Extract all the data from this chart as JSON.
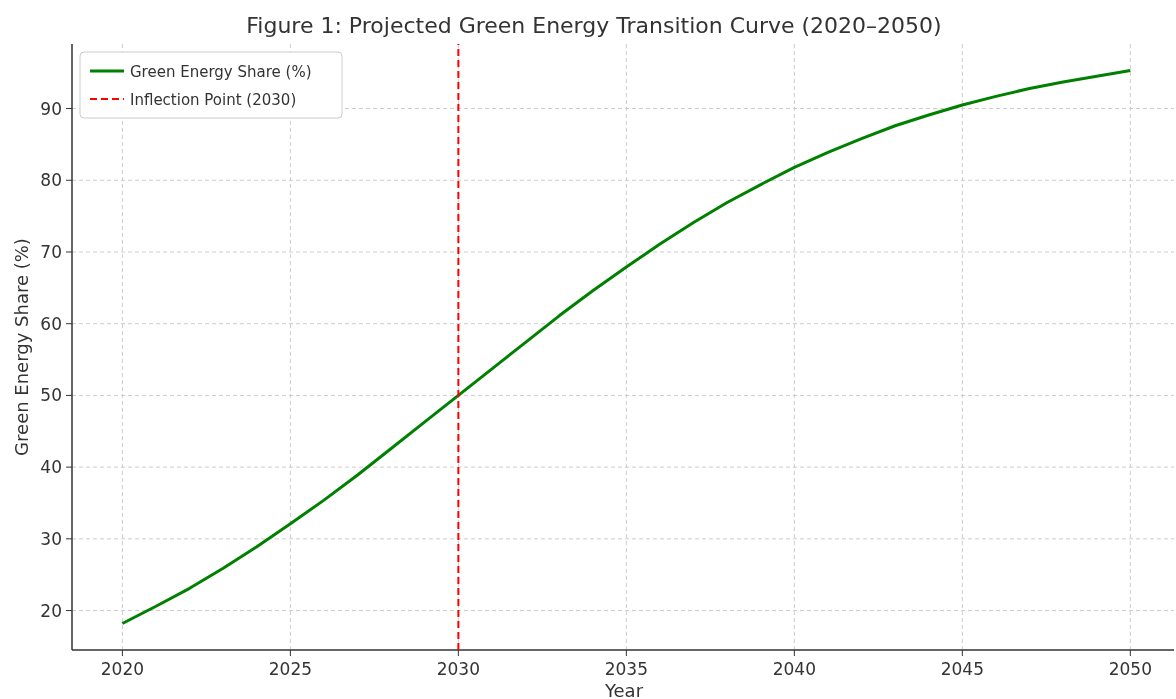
{
  "chart_data": {
    "type": "line",
    "title": "Figure 1: Projected Green Energy Transition Curve (2020–2050)",
    "xlabel": "Year",
    "ylabel": "Green Energy Share (%)",
    "x": [
      2020,
      2021,
      2022,
      2023,
      2024,
      2025,
      2026,
      2027,
      2028,
      2029,
      2030,
      2031,
      2032,
      2033,
      2034,
      2035,
      2036,
      2037,
      2038,
      2039,
      2040,
      2041,
      2042,
      2043,
      2044,
      2045,
      2046,
      2047,
      2048,
      2049,
      2050
    ],
    "series": [
      {
        "name": "Green Energy Share (%)",
        "color": "#008000",
        "values": [
          18.2,
          20.6,
          23.1,
          25.9,
          28.9,
          32.1,
          35.4,
          38.9,
          42.6,
          46.3,
          50,
          53.7,
          57.4,
          61.1,
          64.6,
          67.9,
          71.1,
          74.1,
          76.9,
          79.4,
          81.8,
          83.9,
          85.8,
          87.6,
          89.1,
          90.5,
          91.7,
          92.8,
          93.7,
          94.5,
          95.3
        ]
      },
      {
        "name": "Inflection Point (2030)",
        "type": "line",
        "color": "#ff0000",
        "line_style": "dashed",
        "x": [
          2030,
          2030
        ],
        "values": [
          14.5,
          99
        ]
      }
    ],
    "xlim": [
      2018.5,
      2051.3
    ],
    "xticks": [
      2020,
      2025,
      2030,
      2035,
      2040,
      2045,
      2050
    ],
    "ylim": [
      14.5,
      99
    ],
    "yticks": [
      20,
      30,
      40,
      50,
      60,
      70,
      80,
      90
    ],
    "grid": true,
    "legend": "top left",
    "line_style": "solid",
    "marker": "none"
  }
}
